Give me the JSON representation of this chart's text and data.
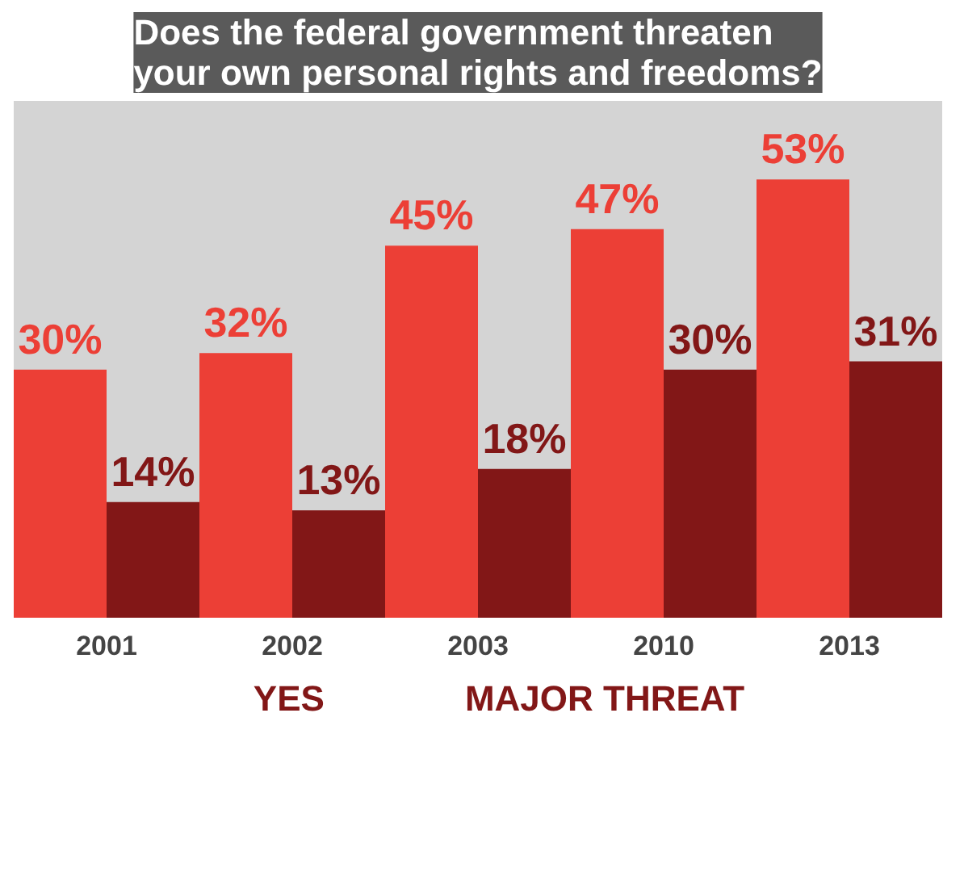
{
  "chart_data": {
    "type": "bar",
    "title": "Does the federal government threaten\nyour own personal rights and freedoms?",
    "categories": [
      "2001",
      "2002",
      "2003",
      "2010",
      "2013"
    ],
    "series": [
      {
        "name": "YES",
        "color": "#ec3f36",
        "values": [
          30,
          32,
          45,
          47,
          53
        ],
        "value_labels": [
          "30%",
          "32%",
          "45%",
          "47%",
          "53%"
        ]
      },
      {
        "name": "MAJOR THREAT",
        "color": "#821717",
        "values": [
          14,
          13,
          18,
          30,
          31
        ],
        "value_labels": [
          "14%",
          "13%",
          "18%",
          "30%",
          "31%"
        ]
      }
    ],
    "ylim": [
      0,
      62.5
    ],
    "tick_labels": "x",
    "grid": false,
    "legend": "bottom"
  }
}
